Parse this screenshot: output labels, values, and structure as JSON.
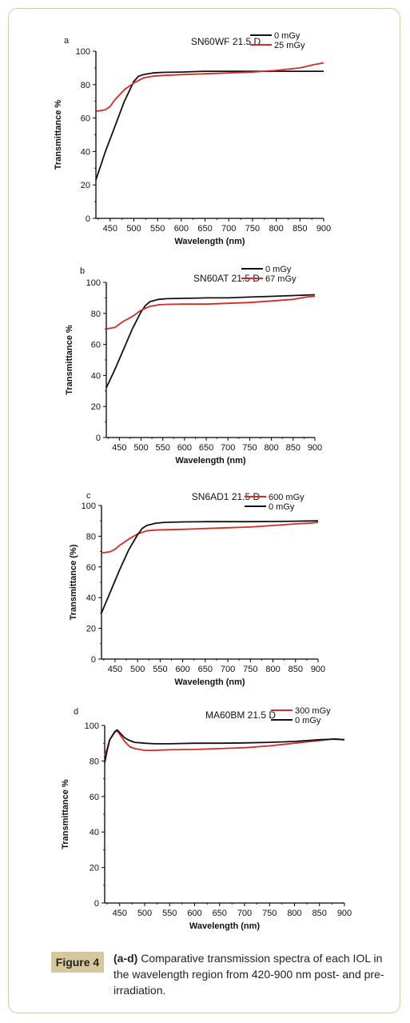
{
  "caption": {
    "figure_label": "Figure 4",
    "bold": "(a-d)",
    "text": " Comparative transmission spectra of each IOL in the wavelength region from 420-900 nm post- and pre-irradiation."
  },
  "colors": {
    "black_series": "#111111",
    "red_series": "#d62a24"
  },
  "chart_data": [
    {
      "type": "line",
      "panel_label": "a",
      "title": "SN60WF 21.5 D",
      "xlabel": "Wavelength (nm)",
      "ylabel": "Transmittance %",
      "xlim": [
        420,
        900
      ],
      "ylim": [
        0,
        100
      ],
      "xticks": [
        450,
        500,
        550,
        600,
        650,
        700,
        750,
        800,
        850,
        900
      ],
      "yticks": [
        0,
        20,
        40,
        60,
        80,
        100
      ],
      "legend_position": "top-right",
      "series": [
        {
          "name": "0 mGy",
          "color": "black",
          "x": [
            420,
            440,
            460,
            480,
            500,
            510,
            520,
            540,
            560,
            600,
            650,
            700,
            750,
            800,
            850,
            900
          ],
          "y": [
            23,
            40,
            55,
            70,
            82,
            85,
            86,
            87,
            87.3,
            87.5,
            88,
            88,
            88,
            88,
            88,
            88
          ]
        },
        {
          "name": "25 mGy",
          "color": "red",
          "x": [
            420,
            440,
            450,
            460,
            480,
            500,
            520,
            540,
            560,
            600,
            650,
            700,
            750,
            800,
            850,
            880,
            900
          ],
          "y": [
            64,
            65,
            67,
            71,
            77,
            81,
            84,
            85,
            85.5,
            86,
            86.5,
            87,
            87.5,
            88.5,
            90,
            92,
            93
          ]
        }
      ]
    },
    {
      "type": "line",
      "panel_label": "b",
      "title": "SN60AT 21.5 D",
      "xlabel": "Wavelength (nm)",
      "ylabel": "Transmittance %",
      "xlim": [
        420,
        900
      ],
      "ylim": [
        0,
        100
      ],
      "xticks": [
        450,
        500,
        550,
        600,
        650,
        700,
        750,
        800,
        850,
        900
      ],
      "yticks": [
        0,
        20,
        40,
        60,
        80,
        100
      ],
      "legend_position": "top-right",
      "series": [
        {
          "name": "0 mGy",
          "color": "black",
          "x": [
            420,
            440,
            460,
            480,
            500,
            510,
            520,
            540,
            560,
            600,
            650,
            700,
            750,
            800,
            850,
            900
          ],
          "y": [
            32,
            44,
            57,
            70,
            81,
            85,
            87.5,
            89,
            89.5,
            89.7,
            90,
            90,
            90.5,
            91,
            91.5,
            92
          ]
        },
        {
          "name": "67 mGy",
          "color": "red",
          "x": [
            420,
            440,
            450,
            460,
            480,
            500,
            520,
            540,
            560,
            600,
            650,
            700,
            750,
            800,
            850,
            880,
            900
          ],
          "y": [
            70,
            71,
            73,
            75,
            78,
            82,
            84.5,
            85.5,
            85.8,
            86,
            86,
            86.5,
            87,
            88,
            89,
            90.5,
            91
          ]
        }
      ]
    },
    {
      "type": "line",
      "panel_label": "c",
      "title": "SN6AD1 21.5 D",
      "xlabel": "Wavelength (nm)",
      "ylabel": "Transmittance (%)",
      "xlim": [
        420,
        900
      ],
      "ylim": [
        0,
        100
      ],
      "xticks": [
        450,
        500,
        550,
        600,
        650,
        700,
        750,
        800,
        850,
        900
      ],
      "yticks": [
        0,
        20,
        40,
        60,
        80,
        100
      ],
      "legend_position": "top-right",
      "series": [
        {
          "name": "600 mGy",
          "color": "red",
          "x": [
            420,
            440,
            450,
            460,
            480,
            500,
            520,
            540,
            560,
            600,
            650,
            700,
            750,
            800,
            850,
            880,
            900
          ],
          "y": [
            69,
            70,
            71.5,
            74,
            78,
            81.5,
            83.5,
            84,
            84.2,
            84.5,
            85,
            85.5,
            86,
            87,
            88,
            88.5,
            89
          ]
        },
        {
          "name": "0 mGy",
          "color": "black",
          "x": [
            420,
            440,
            460,
            480,
            500,
            510,
            520,
            540,
            560,
            600,
            650,
            700,
            750,
            800,
            850,
            900
          ],
          "y": [
            30,
            44,
            58,
            71,
            81,
            85,
            87,
            88.5,
            89,
            89.3,
            89.5,
            89.5,
            89.5,
            89.6,
            89.8,
            90
          ]
        }
      ]
    },
    {
      "type": "line",
      "panel_label": "d",
      "title": "MA60BM 21.5 D",
      "xlabel": "Wavelength (nm)",
      "ylabel": "Transmittance %",
      "xlim": [
        420,
        900
      ],
      "ylim": [
        0,
        100
      ],
      "xticks": [
        450,
        500,
        550,
        600,
        650,
        700,
        750,
        800,
        850,
        900
      ],
      "yticks": [
        0,
        20,
        40,
        60,
        80,
        100
      ],
      "legend_position": "top-right",
      "series": [
        {
          "name": "300 mGy",
          "color": "red",
          "x": [
            420,
            425,
            430,
            440,
            445,
            450,
            460,
            470,
            480,
            500,
            520,
            550,
            600,
            650,
            700,
            750,
            800,
            850,
            880,
            900
          ],
          "y": [
            83,
            87,
            92,
            96,
            97,
            95,
            91,
            88,
            87,
            86,
            86,
            86.3,
            86.5,
            87,
            87.5,
            88.5,
            90,
            91.5,
            92.5,
            92
          ]
        },
        {
          "name": "0 mGy",
          "color": "black",
          "x": [
            420,
            425,
            430,
            440,
            445,
            450,
            460,
            470,
            480,
            500,
            520,
            550,
            600,
            650,
            700,
            750,
            800,
            850,
            880,
            900
          ],
          "y": [
            79,
            86,
            92,
            96.5,
            97.5,
            96,
            93,
            91.5,
            90.5,
            90,
            89.7,
            89.7,
            90,
            90,
            90.2,
            90.5,
            91,
            92,
            92.3,
            92
          ]
        }
      ]
    }
  ]
}
